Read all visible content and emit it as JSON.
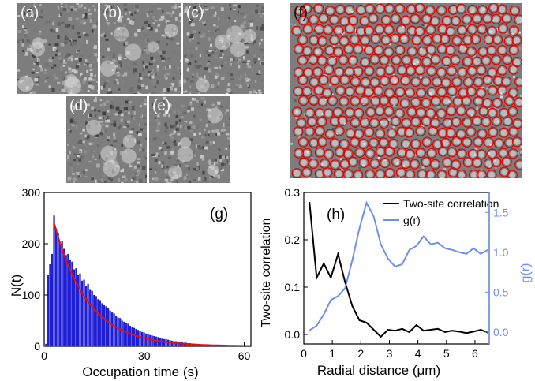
{
  "panels": {
    "a": "(a)",
    "b": "(b)",
    "c": "(c)",
    "d": "(d)",
    "e": "(e)",
    "f": "(f)"
  },
  "chart_data": [
    {
      "type": "bar",
      "panel_label": "(g)",
      "xlabel": "Occupation time (s)",
      "ylabel": "N(t)",
      "xlim": [
        0,
        62
      ],
      "ylim": [
        0,
        300
      ],
      "xticks": [
        0,
        30,
        60
      ],
      "yticks": [
        0,
        100,
        200,
        300
      ],
      "bar_color": "#1f1fd6",
      "fit_color": "#e01010",
      "bin_width": 0.6,
      "x": [
        0.6,
        1.2,
        1.8,
        2.4,
        3.0,
        3.6,
        4.2,
        4.8,
        5.4,
        6.0,
        6.6,
        7.2,
        7.8,
        8.4,
        9.0,
        9.6,
        10.2,
        10.8,
        11.4,
        12.0,
        12.6,
        13.2,
        13.8,
        14.4,
        15.0,
        15.6,
        16.2,
        16.8,
        17.4,
        18.0,
        18.6,
        19.2,
        19.8,
        20.4,
        21.0,
        21.6,
        22.2,
        22.8,
        23.4,
        24.0,
        24.6,
        25.2,
        25.8,
        26.4,
        27.0,
        27.6,
        28.2,
        28.8,
        29.4,
        30.0,
        30.6,
        31.2,
        31.8,
        32.4,
        33.0,
        33.6,
        34.2,
        34.8,
        35.4,
        36.0,
        36.6,
        37.2,
        37.8,
        38.4,
        39.0,
        39.6,
        40.2,
        40.8,
        41.4,
        42.0,
        42.6,
        43.2,
        43.8,
        44.4,
        45.0,
        45.6,
        46.2,
        46.8,
        47.4,
        48.0,
        48.6,
        49.2,
        49.8,
        50.4,
        51.0,
        51.6,
        52.2,
        52.8,
        53.4,
        54.0,
        54.6,
        55.2,
        55.8,
        56.4,
        57.0,
        57.6,
        58.2,
        58.8,
        59.4,
        60.0
      ],
      "values": [
        5,
        140,
        160,
        180,
        255,
        230,
        220,
        200,
        205,
        190,
        178,
        180,
        168,
        165,
        150,
        152,
        140,
        142,
        128,
        130,
        118,
        122,
        110,
        108,
        100,
        98,
        92,
        90,
        84,
        80,
        78,
        74,
        70,
        66,
        64,
        60,
        56,
        55,
        50,
        48,
        46,
        44,
        40,
        38,
        36,
        34,
        32,
        30,
        28,
        27,
        25,
        24,
        22,
        21,
        20,
        19,
        18,
        17,
        15,
        14,
        14,
        13,
        12,
        11,
        10,
        10,
        9,
        8,
        8,
        7,
        7,
        6,
        6,
        5,
        5,
        5,
        4,
        4,
        3,
        3,
        3,
        3,
        2,
        2,
        2,
        2,
        2,
        1,
        1,
        1,
        1,
        1,
        1,
        1,
        1,
        0,
        0,
        0,
        0,
        0
      ],
      "fit": {
        "type": "exponential",
        "x_start": 3,
        "x_end": 62,
        "amplitude": 240,
        "tau": 10
      }
    },
    {
      "type": "line",
      "panel_label": "(h)",
      "xlabel": "Radial distance (μm)",
      "ylabel": "Two-site correlation",
      "y2label": "g(r)",
      "xlim": [
        0,
        6.5
      ],
      "ylim": [
        -0.02,
        0.3
      ],
      "y2lim": [
        -0.15,
        1.75
      ],
      "xticks": [
        0,
        1,
        2,
        3,
        4,
        5,
        6
      ],
      "yticks": [
        0.0,
        0.1,
        0.2,
        0.3
      ],
      "y2ticks": [
        0.0,
        0.5,
        1.0,
        1.5
      ],
      "legend_position": "top-right",
      "series": [
        {
          "name": "Two-site correlation",
          "axis": "left",
          "color": "#000000",
          "x": [
            0.2,
            0.45,
            0.7,
            0.95,
            1.2,
            1.45,
            1.7,
            1.95,
            2.2,
            2.45,
            2.7,
            2.95,
            3.2,
            3.45,
            3.7,
            3.95,
            4.2,
            4.45,
            4.7,
            4.95,
            5.2,
            5.45,
            5.7,
            5.95,
            6.2,
            6.45
          ],
          "values": [
            0.28,
            0.12,
            0.15,
            0.12,
            0.17,
            0.11,
            0.06,
            0.03,
            0.025,
            0.01,
            -0.005,
            0.01,
            0.008,
            0.012,
            0.005,
            0.02,
            0.008,
            0.01,
            0.012,
            0.005,
            0.008,
            0.006,
            0.003,
            0.006,
            0.01,
            0.004
          ]
        },
        {
          "name": "g(r)",
          "axis": "right",
          "color": "#6f8fee",
          "x": [
            0.2,
            0.45,
            0.7,
            0.95,
            1.2,
            1.45,
            1.7,
            1.95,
            2.2,
            2.45,
            2.7,
            2.95,
            3.2,
            3.45,
            3.7,
            3.95,
            4.2,
            4.45,
            4.7,
            4.95,
            5.2,
            5.45,
            5.7,
            5.95,
            6.2,
            6.45
          ],
          "values": [
            0.02,
            0.08,
            0.22,
            0.4,
            0.45,
            0.55,
            0.9,
            1.3,
            1.62,
            1.45,
            1.1,
            0.92,
            0.82,
            0.85,
            1.03,
            1.08,
            1.2,
            1.1,
            1.12,
            1.05,
            1.03,
            1.0,
            0.98,
            1.05,
            0.98,
            1.03
          ]
        }
      ]
    }
  ]
}
